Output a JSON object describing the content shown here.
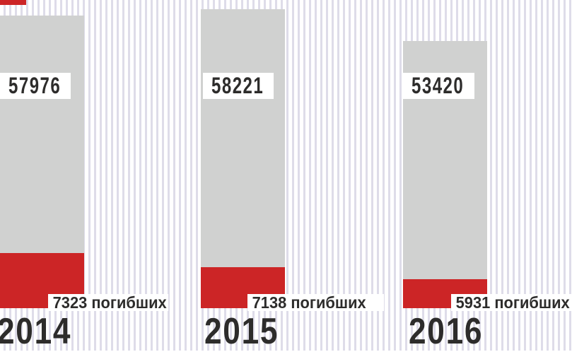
{
  "chart_data": {
    "type": "bar",
    "subtype": "stacked-infographic-columns",
    "categories": [
      "2014",
      "2015",
      "2016"
    ],
    "series": [
      {
        "role": "total",
        "color": "#d0d1d0",
        "values": [
          57976,
          58221,
          53420
        ]
      },
      {
        "role": "deaths",
        "color": "#cc2526",
        "values": [
          7323,
          7138,
          5931
        ]
      }
    ],
    "value_labels": [
      "57976",
      "58221",
      "53420"
    ],
    "death_labels": [
      "7323 погибших",
      "7138 погибших",
      "5931 погибших"
    ],
    "title": "",
    "xlabel": "",
    "ylabel": "",
    "grid": false,
    "legend_position": "none",
    "background": "vertical-pinstripes"
  },
  "colors": {
    "bar_gray": "#d0d1d0",
    "bar_red": "#cc2526",
    "stripe": "#dedce9",
    "background": "#ffffff",
    "label_box": "#ffffff",
    "text_dark": "#2d2c2b"
  }
}
